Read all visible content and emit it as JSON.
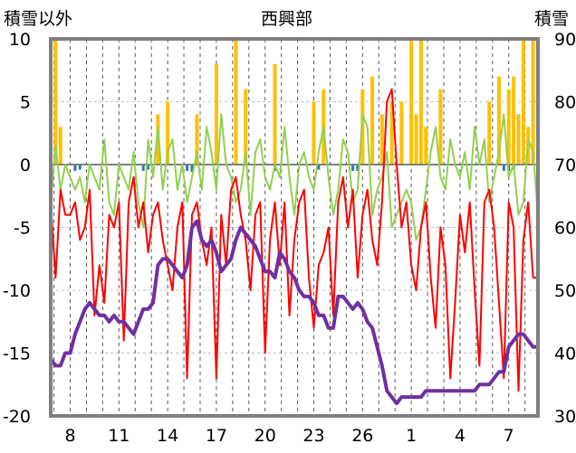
{
  "chart_data": {
    "type": "line",
    "title": "西興部",
    "left_axis_title": "積雪以外",
    "right_axis_title": "積雪",
    "y_left": {
      "min": -20,
      "max": 10,
      "ticks": [
        "10",
        "5",
        "0",
        "-5",
        "-10",
        "-15",
        "-20"
      ]
    },
    "y_right": {
      "min": 30,
      "max": 90,
      "ticks": [
        "90",
        "80",
        "70",
        "60",
        "50",
        "40",
        "30"
      ]
    },
    "x": {
      "min": 0,
      "max": 100,
      "ticks": [
        {
          "label": "8",
          "x": 4
        },
        {
          "label": "11",
          "x": 14
        },
        {
          "label": "14",
          "x": 24
        },
        {
          "label": "17",
          "x": 34
        },
        {
          "label": "20",
          "x": 44
        },
        {
          "label": "23",
          "x": 54
        },
        {
          "label": "26",
          "x": 64
        },
        {
          "label": "1",
          "x": 74
        },
        {
          "label": "4",
          "x": 84
        },
        {
          "label": "7",
          "x": 94
        }
      ]
    },
    "grid": "dashed vertical every 1/3 of tick spacing, horizontal dashed at y ticks",
    "colors": {
      "precip_bar": "#ffc000",
      "precip_neg_bar": "#2e75b6",
      "max_temp": "#92d050",
      "min_temp": "#ff0000",
      "snow_depth": "#7030a0",
      "zero_line": "#808080"
    },
    "series": [
      {
        "color": "#92d050",
        "axis": "left",
        "x": [
          0,
          1,
          2,
          3,
          4,
          5,
          6,
          7,
          8,
          9,
          10,
          11,
          12,
          13,
          14,
          15,
          16,
          17,
          18,
          19,
          20,
          21,
          22,
          23,
          24,
          25,
          26,
          27,
          28,
          29,
          30,
          31,
          32,
          33,
          34,
          35,
          36,
          37,
          38,
          39,
          40,
          41,
          42,
          43,
          44,
          45,
          46,
          47,
          48,
          49,
          50,
          51,
          52,
          53,
          54,
          55,
          56,
          57,
          58,
          59,
          60,
          61,
          62,
          63,
          64,
          65,
          66,
          67,
          68,
          69,
          70,
          71,
          72,
          73,
          74,
          75,
          76,
          77,
          78,
          79,
          80,
          81,
          82,
          83,
          84,
          85,
          86,
          87,
          88,
          89,
          90,
          91,
          92,
          93,
          94,
          95,
          96,
          97,
          98,
          99,
          100
        ],
        "y": [
          -3,
          1.5,
          -2,
          0,
          -1,
          -2,
          -1,
          -3,
          0,
          -1,
          -2,
          2,
          -3,
          -4,
          0,
          -1,
          -2,
          1,
          -3,
          -5,
          2,
          -1,
          3,
          -2,
          1,
          2,
          -2,
          0,
          -3,
          -1,
          1,
          -2,
          3,
          1,
          -2,
          4,
          0,
          -1,
          -3,
          -2,
          1,
          -4,
          1,
          2,
          -1,
          -2,
          0,
          -1,
          3,
          -1,
          -4,
          0,
          1,
          -1,
          -2,
          1,
          3,
          -1,
          -4,
          -2,
          2,
          1,
          -3,
          -2,
          4,
          3,
          -4,
          -2,
          -1,
          1,
          -5,
          -4,
          -3,
          -2,
          -3,
          -6,
          -5,
          -2,
          1,
          3,
          -1,
          -2,
          2,
          0,
          -1,
          1,
          -2,
          3,
          0,
          2,
          -3,
          -1,
          1,
          4,
          -1,
          0,
          -4,
          -3,
          2,
          1,
          -4
        ]
      },
      {
        "color": "#ff0000",
        "axis": "left",
        "x": [
          0,
          1,
          2,
          3,
          4,
          5,
          6,
          7,
          8,
          9,
          10,
          11,
          12,
          13,
          14,
          15,
          16,
          17,
          18,
          19,
          20,
          21,
          22,
          23,
          24,
          25,
          26,
          27,
          28,
          29,
          30,
          31,
          32,
          33,
          34,
          35,
          36,
          37,
          38,
          39,
          40,
          41,
          42,
          43,
          44,
          45,
          46,
          47,
          48,
          49,
          50,
          51,
          52,
          53,
          54,
          55,
          56,
          57,
          58,
          59,
          60,
          61,
          62,
          63,
          64,
          65,
          66,
          67,
          68,
          69,
          70,
          71,
          72,
          73,
          74,
          75,
          76,
          77,
          78,
          79,
          80,
          81,
          82,
          83,
          84,
          85,
          86,
          87,
          88,
          89,
          90,
          91,
          92,
          93,
          94,
          95,
          96,
          97,
          98,
          99,
          100
        ],
        "y": [
          -3,
          -9,
          -2,
          -4,
          -4,
          -3,
          -6,
          -5,
          -2,
          -12,
          -8,
          -11,
          -4,
          -5,
          -3,
          -14,
          -3,
          -1,
          -5,
          -3,
          -7,
          -4,
          -3,
          -6,
          -8,
          -10,
          -5,
          -3,
          -17,
          -4,
          -3,
          -6,
          -8,
          -5,
          -17,
          -4,
          -8,
          -2,
          -1,
          -4,
          -6,
          -10,
          -4,
          -3,
          -15,
          -6,
          -3,
          -8,
          -3,
          -12,
          -6,
          -3,
          -2,
          -9,
          -13,
          -8,
          -7,
          -5,
          -12,
          -3,
          -1,
          -5,
          -2,
          -9,
          -4,
          -2,
          -6,
          -8,
          -3,
          5,
          6,
          0,
          -5,
          -3,
          -8,
          -10,
          -5,
          -3,
          -9,
          -13,
          -5,
          -8,
          -17,
          -11,
          -4,
          -7,
          -3,
          -10,
          -16,
          -3,
          -2,
          -5,
          -11,
          -17,
          -3,
          -5,
          -18,
          -6,
          -3,
          -9,
          -9
        ]
      },
      {
        "color": "#7030a0",
        "axis": "right",
        "x": [
          0,
          1,
          2,
          3,
          4,
          5,
          6,
          7,
          8,
          9,
          10,
          11,
          12,
          13,
          14,
          15,
          16,
          17,
          18,
          19,
          20,
          21,
          22,
          23,
          24,
          25,
          26,
          27,
          28,
          29,
          30,
          31,
          32,
          33,
          34,
          35,
          36,
          37,
          38,
          39,
          40,
          41,
          42,
          43,
          44,
          45,
          46,
          47,
          48,
          49,
          50,
          51,
          52,
          53,
          54,
          55,
          56,
          57,
          58,
          59,
          60,
          61,
          62,
          63,
          64,
          65,
          66,
          67,
          68,
          69,
          70,
          71,
          72,
          73,
          74,
          75,
          76,
          77,
          78,
          79,
          80,
          81,
          82,
          83,
          84,
          85,
          86,
          87,
          88,
          89,
          90,
          91,
          92,
          93,
          94,
          95,
          96,
          97,
          98,
          99,
          100
        ],
        "y": [
          39,
          38,
          38,
          40,
          40,
          43,
          45,
          47,
          48,
          47,
          46,
          46,
          45,
          46,
          45,
          45,
          44,
          43,
          45,
          47,
          47,
          48,
          54,
          55,
          55,
          54,
          53,
          52,
          54,
          60,
          61,
          58,
          57,
          58,
          56,
          53,
          54,
          55,
          58,
          60,
          59,
          58,
          57,
          55,
          53,
          53,
          52,
          56,
          55,
          53,
          52,
          50,
          49,
          49,
          48,
          46,
          46,
          44,
          44,
          49,
          49,
          48,
          47,
          48,
          47,
          45,
          44,
          41,
          38,
          34,
          33,
          32,
          33,
          33,
          33,
          33,
          33,
          34,
          34,
          34,
          34,
          34,
          34,
          34,
          34,
          34,
          34,
          34,
          35,
          35,
          35,
          36,
          37,
          37,
          41,
          42,
          43,
          43,
          42,
          41,
          41
        ]
      }
    ],
    "bars": {
      "color": "#ffc000",
      "axis": "left",
      "x": [
        1,
        2,
        22,
        24,
        30,
        34,
        38,
        40,
        46,
        54,
        56,
        64,
        66,
        68,
        70,
        72,
        74,
        75,
        76,
        77,
        80,
        90,
        92,
        94,
        95,
        96,
        97,
        98,
        99
      ],
      "y": [
        10,
        3,
        4,
        5,
        4,
        8,
        10,
        6,
        8,
        5,
        6,
        6,
        7,
        4,
        5,
        5,
        10,
        4,
        10,
        3,
        6,
        5,
        7,
        6,
        7,
        4,
        10,
        3,
        10
      ]
    },
    "neg_bars": {
      "color": "#2e75b6",
      "axis": "left",
      "x": [
        5,
        6,
        19,
        20,
        28,
        29,
        46,
        55,
        62,
        63,
        93,
        94,
        95
      ],
      "y": [
        -0.5,
        -0.4,
        -0.5,
        -0.4,
        -0.5,
        -0.6,
        -0.5,
        -0.4,
        -0.5,
        -0.5,
        -0.5,
        -0.5,
        -0.4
      ]
    }
  }
}
